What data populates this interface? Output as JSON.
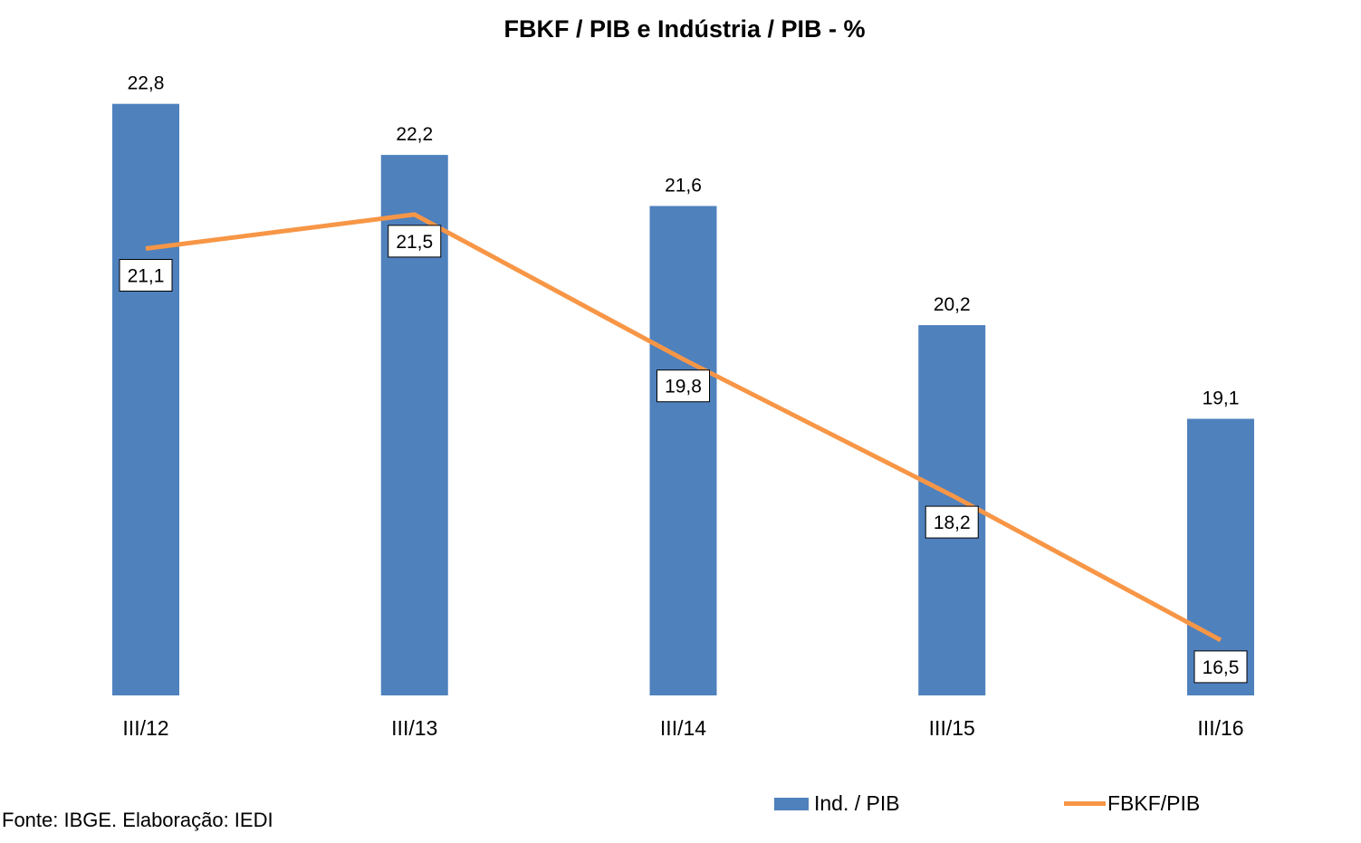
{
  "chart_data": {
    "type": "bar+line",
    "title": "FBKF / PIB e Indústria / PIB - %",
    "categories": [
      "III/12",
      "III/13",
      "III/14",
      "III/15",
      "III/16"
    ],
    "series": [
      {
        "name": "Ind. / PIB",
        "type": "bar",
        "color": "#4f81bd",
        "values": [
          22.8,
          22.2,
          21.6,
          20.2,
          19.1
        ],
        "labels": [
          "22,8",
          "22,2",
          "21,6",
          "20,2",
          "19,1"
        ]
      },
      {
        "name": "FBKF/PIB",
        "type": "line",
        "color": "#f79646",
        "values": [
          21.1,
          21.5,
          19.8,
          18.2,
          16.5
        ],
        "labels": [
          "21,1",
          "21,5",
          "19,8",
          "18,2",
          "16,5"
        ]
      }
    ],
    "xlabel": "",
    "ylabel": "",
    "ylim": [
      15.85,
      23.0
    ],
    "grid": false,
    "legend": "bottom-right"
  },
  "source": "Fonte: IBGE. Elaboração: IEDI"
}
